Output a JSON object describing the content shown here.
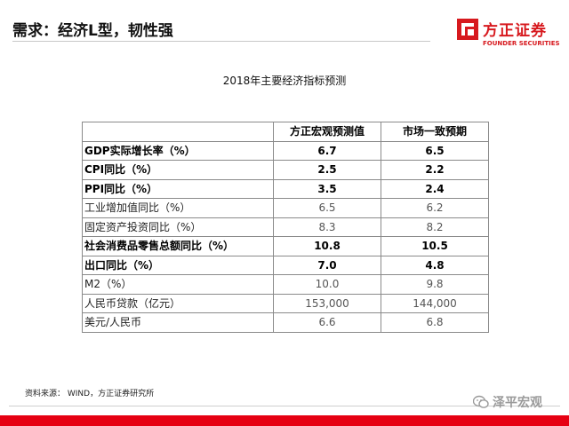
{
  "header": {
    "title": "需求：经济L型，韧性强"
  },
  "logo": {
    "name_cn": "方正证券",
    "name_en": "FOUNDER SECURITIES",
    "color": "#d7191e"
  },
  "table": {
    "title": "2018年主要经济指标预测",
    "columns": [
      "",
      "方正宏观预测值",
      "市场一致预期"
    ],
    "rows": [
      {
        "label": "GDP实际增长率（%）",
        "forecast": "6.7",
        "consensus": "6.5",
        "bold": true
      },
      {
        "label": "CPI同比（%）",
        "forecast": "2.5",
        "consensus": "2.2",
        "bold": true
      },
      {
        "label": "PPI同比（%）",
        "forecast": "3.5",
        "consensus": "2.4",
        "bold": true
      },
      {
        "label": "工业增加值同比（%）",
        "forecast": "6.5",
        "consensus": "6.2",
        "bold": false
      },
      {
        "label": "固定资产投资同比（%）",
        "forecast": "8.3",
        "consensus": "8.2",
        "bold": false
      },
      {
        "label": "社会消费品零售总额同比（%）",
        "forecast": "10.8",
        "consensus": "10.5",
        "bold": true
      },
      {
        "label": "出口同比（%）",
        "forecast": "7.0",
        "consensus": "4.8",
        "bold": true
      },
      {
        "label": "M2（%）",
        "forecast": "10.0",
        "consensus": "9.8",
        "bold": false
      },
      {
        "label": "人民币贷款（亿元）",
        "forecast": "153,000",
        "consensus": "144,000",
        "bold": false
      },
      {
        "label": "美元/人民币",
        "forecast": "6.6",
        "consensus": "6.8",
        "bold": false
      }
    ]
  },
  "footer": {
    "source": "资料来源： WIND，方正证券研究所",
    "watermark": "泽平宏观",
    "bar_color": "#e60012"
  }
}
